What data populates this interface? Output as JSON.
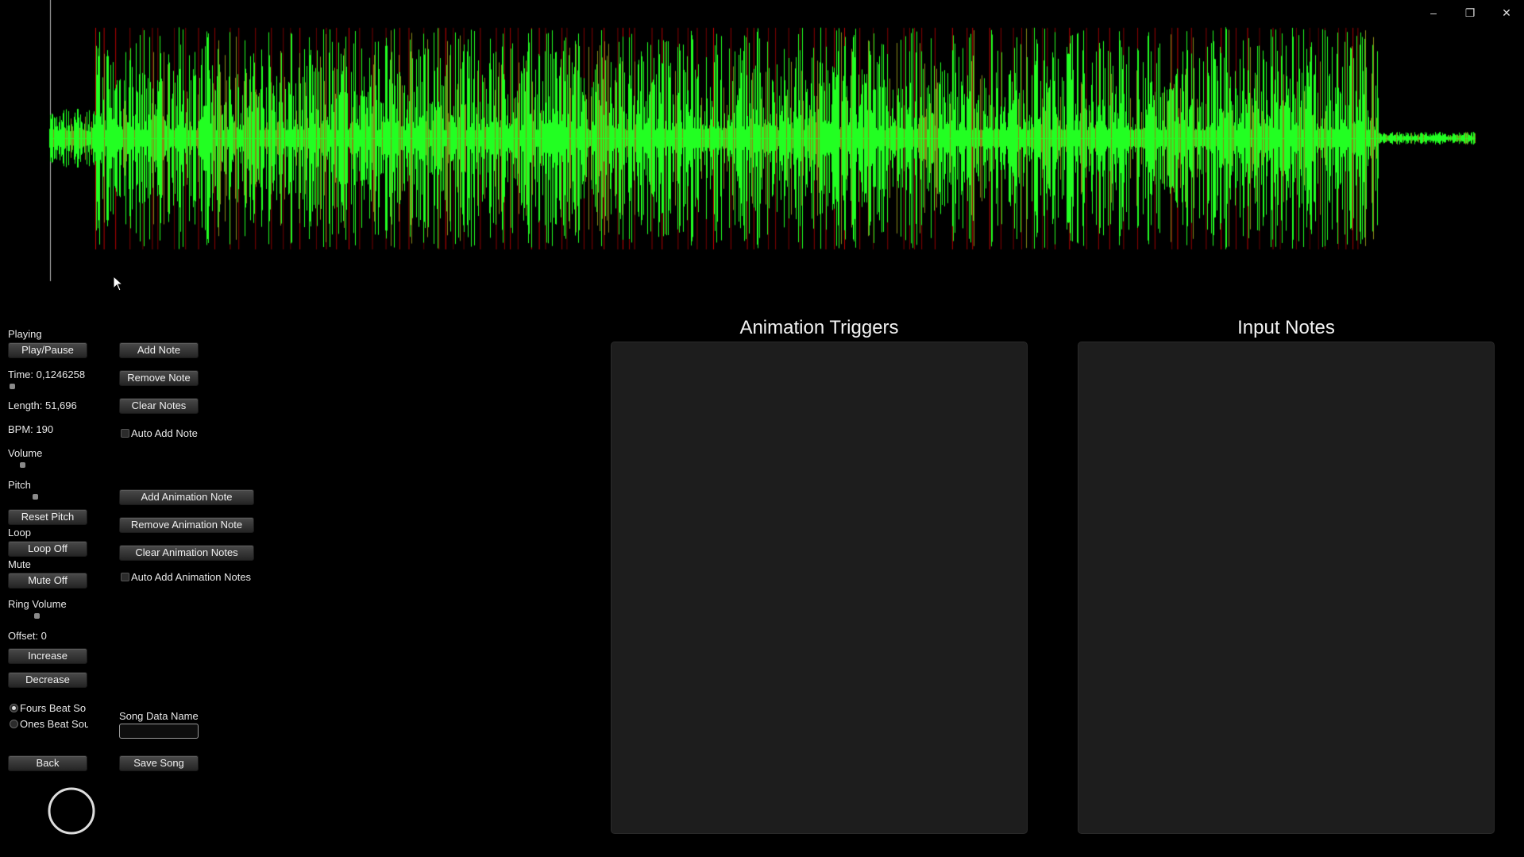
{
  "window": {
    "minimize": "–",
    "restore": "❐",
    "close": "✕"
  },
  "waveform": {
    "base_color": "#22ff22",
    "beat_color": "#d00000",
    "mid_color": "#8a8a18"
  },
  "left": {
    "playing_label": "Playing",
    "play_pause": "Play/Pause",
    "time": "Time: 0,1246258",
    "length": "Length: 51,696",
    "bpm": "BPM: 190",
    "volume_label": "Volume",
    "pitch_label": "Pitch",
    "reset_pitch": "Reset Pitch",
    "loop_label": "Loop",
    "loop_toggle": "Loop Off",
    "mute_label": "Mute",
    "mute_toggle": "Mute Off",
    "ring_volume_label": "Ring Volume",
    "offset": "Offset: 0",
    "increase": "Increase",
    "decrease": "Decrease",
    "fours_beat": "Fours Beat So",
    "ones_beat": "Ones Beat Sou",
    "back": "Back"
  },
  "notes": {
    "add_note": "Add Note",
    "remove_note": "Remove Note",
    "clear_notes": "Clear Notes",
    "auto_add_note": "Auto Add Note",
    "add_animation_note": "Add Animation Note",
    "remove_animation_note": "Remove Animation Note",
    "clear_animation_notes": "Clear Animation Notes",
    "auto_add_animation_notes": "Auto Add Animation Notes",
    "song_data_name_label": "Song Data Name",
    "song_data_name_value": "",
    "save_song": "Save Song"
  },
  "panels": {
    "animation_triggers": "Animation Triggers",
    "input_notes": "Input Notes"
  }
}
